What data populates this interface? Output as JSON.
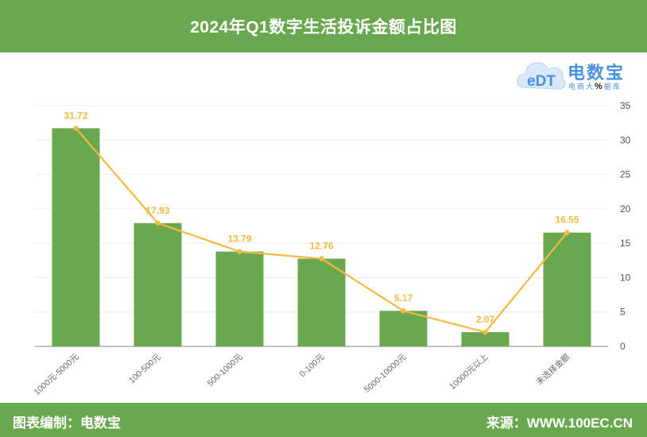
{
  "header": {
    "title": "2024年Q1数字生活投诉金额占比图"
  },
  "footer": {
    "left": "图表编制：电数宝",
    "right": "来源：WWW.100EC.CN"
  },
  "logo": {
    "glyph": "eDT",
    "name": "电数宝",
    "sub_before": "电商大",
    "sub_pct": "%",
    "sub_after": "据库"
  },
  "colors": {
    "bar": "#6aa84f",
    "line": "#f4b942",
    "band": "#6aa84f",
    "logo": "#4a90e2"
  },
  "chart_data": {
    "type": "bar",
    "categories": [
      "1000元-5000元",
      "100-500元",
      "500-1000元",
      "0-100元",
      "5000-10000元",
      "10000元以上",
      "未选择金额"
    ],
    "series": [
      {
        "type": "bar",
        "values": [
          31.72,
          17.93,
          13.79,
          12.76,
          5.17,
          2.07,
          16.55
        ]
      },
      {
        "type": "line",
        "values": [
          31.72,
          17.93,
          13.79,
          12.76,
          5.17,
          2.07,
          16.55
        ]
      }
    ],
    "data_labels": [
      "31.72",
      "17.93",
      "13.79",
      "12.76",
      "5.17",
      "2.07",
      "16.55"
    ],
    "y_ticks": [
      "0",
      "5",
      "10",
      "15",
      "20",
      "25",
      "30",
      "35"
    ],
    "ylim": [
      0,
      35
    ],
    "y_axis_side": "right",
    "grid": true,
    "legend": "none"
  }
}
